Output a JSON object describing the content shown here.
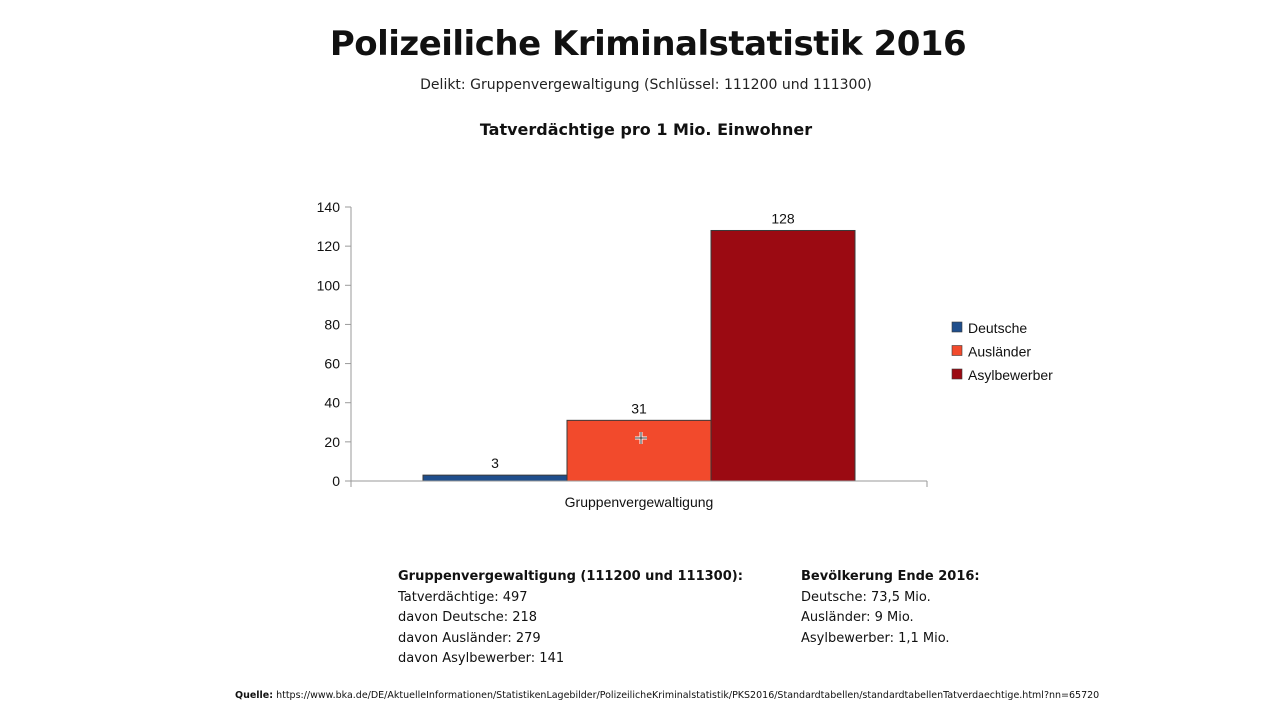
{
  "header": {
    "title": "Polizeiliche Kriminalstatistik 2016",
    "subtitle": "Delikt: Gruppenvergewaltigung (Schlüssel: 111200 und 111300)",
    "chart_heading": "Tatverdächtige pro 1 Mio. Einwohner"
  },
  "chart_data": {
    "type": "bar",
    "title": "Tatverdächtige pro 1 Mio. Einwohner",
    "categories": [
      "Gruppenvergewaltigung"
    ],
    "series": [
      {
        "name": "Deutsche",
        "values": [
          3
        ],
        "color": "#1f4e8c"
      },
      {
        "name": "Ausländer",
        "values": [
          31
        ],
        "color": "#f24a2c"
      },
      {
        "name": "Asylbewerber",
        "values": [
          128
        ],
        "color": "#9b0a12"
      }
    ],
    "ylim": [
      0,
      140
    ],
    "yticks": [
      0,
      20,
      40,
      60,
      80,
      100,
      120,
      140
    ],
    "data_labels": true,
    "grid": false,
    "legend": "right",
    "xlabel": "",
    "ylabel": ""
  },
  "info_left": {
    "heading": "Gruppenvergewaltigung (111200 und 111300):",
    "lines": [
      "Tatverdächtige: 497",
      "davon Deutsche: 218",
      "davon Ausländer: 279",
      "davon Asylbewerber: 141"
    ]
  },
  "info_right": {
    "heading": "Bevölkerung Ende 2016:",
    "lines": [
      "Deutsche: 73,5 Mio.",
      "Ausländer: 9 Mio.",
      "Asylbewerber: 1,1 Mio."
    ]
  },
  "source": {
    "label": "Quelle:",
    "url": "https://www.bka.de/DE/AktuelleInformationen/StatistikenLagebilder/PolizeilicheKriminalstatistik/PKS2016/Standardtabellen/standardtabellenTatverdaechtige.html?nn=65720"
  }
}
